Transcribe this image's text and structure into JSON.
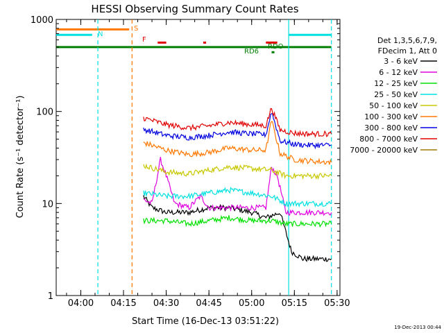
{
  "chart_data": {
    "type": "line",
    "title": "HESSI Observing Summary Count Rates",
    "xlabel": "Start Time (16-Dec-13 03:51:22)",
    "ylabel": "Count Rate (s⁻¹ detector⁻¹)",
    "yscale": "log",
    "ylim": [
      1,
      1000
    ],
    "xlim": [
      "03:51:22",
      "05:31:00"
    ],
    "x_ticks": [
      "04:00",
      "04:15",
      "04:30",
      "04:45",
      "05:00",
      "05:15",
      "05:30"
    ],
    "y_ticks": [
      "1",
      "10",
      "100",
      "1000"
    ],
    "grid": false,
    "legend_position": "right",
    "legend_header": [
      "Det 1,3,5,6,7,9,",
      "FDecim 1, Att 0"
    ],
    "timestamp": "19-Dec-2013 00:44",
    "series": [
      {
        "name": "3 - 6 keV",
        "color": "#000000",
        "x": [
          "04:22",
          "04:25",
          "04:30",
          "04:38",
          "04:45",
          "04:52",
          "05:00",
          "05:05",
          "05:10",
          "05:14",
          "05:18",
          "05:22",
          "05:25",
          "05:28"
        ],
        "values": [
          12,
          9,
          8,
          8,
          9,
          9,
          8,
          7,
          8,
          3,
          2.5,
          2.5,
          2.5,
          2.5
        ]
      },
      {
        "name": "6 - 12 keV",
        "color": "#e000e0",
        "x": [
          "04:22",
          "04:25",
          "04:28",
          "04:30",
          "04:33",
          "04:38",
          "04:42",
          "04:45",
          "04:50",
          "04:55",
          "05:00",
          "05:05",
          "05:07",
          "05:09",
          "05:12",
          "05:15",
          "05:20",
          "05:28"
        ],
        "values": [
          11,
          10,
          30,
          20,
          10,
          9,
          12,
          9,
          9,
          9,
          9,
          9,
          25,
          20,
          8,
          8,
          8,
          8
        ]
      },
      {
        "name": "12 - 25 keV",
        "color": "#00e000",
        "x": [
          "04:22",
          "04:30",
          "04:38",
          "04:45",
          "04:52",
          "05:00",
          "05:07",
          "05:12",
          "05:20",
          "05:28"
        ],
        "values": [
          6.5,
          6.5,
          6,
          6.5,
          7,
          6.5,
          6.5,
          6,
          6,
          6
        ]
      },
      {
        "name": "25 - 50 keV",
        "color": "#00e0e0",
        "x": [
          "04:22",
          "04:30",
          "04:38",
          "04:45",
          "04:52",
          "05:00",
          "05:07",
          "05:12",
          "05:20",
          "05:28"
        ],
        "values": [
          13,
          12,
          12,
          13,
          14,
          13,
          12,
          10,
          10,
          10
        ]
      },
      {
        "name": "50 - 100 keV",
        "color": "#c8c800",
        "x": [
          "04:22",
          "04:30",
          "04:38",
          "04:45",
          "04:52",
          "05:00",
          "05:07",
          "05:12",
          "05:20",
          "05:28"
        ],
        "values": [
          26,
          22,
          21,
          23,
          25,
          24,
          23,
          20,
          20,
          20
        ]
      },
      {
        "name": "100 - 300 keV",
        "color": "#ff7800",
        "x": [
          "04:22",
          "04:30",
          "04:38",
          "04:45",
          "04:52",
          "05:00",
          "05:05",
          "05:07",
          "05:10",
          "05:15",
          "05:20",
          "05:28"
        ],
        "values": [
          46,
          38,
          34,
          36,
          40,
          38,
          38,
          80,
          35,
          30,
          29,
          28
        ]
      },
      {
        "name": "300 - 800 keV",
        "color": "#0000e0",
        "x": [
          "04:22",
          "04:30",
          "04:38",
          "04:45",
          "04:52",
          "05:00",
          "05:05",
          "05:07",
          "05:10",
          "05:15",
          "05:20",
          "05:28"
        ],
        "values": [
          64,
          55,
          52,
          55,
          60,
          57,
          56,
          100,
          48,
          44,
          43,
          43
        ]
      },
      {
        "name": "800 - 7000 keV",
        "color": "#e00000",
        "x": [
          "04:22",
          "04:30",
          "04:38",
          "04:45",
          "04:52",
          "05:00",
          "05:05",
          "05:07",
          "05:10",
          "05:15",
          "05:20",
          "05:28"
        ],
        "values": [
          85,
          72,
          66,
          70,
          76,
          72,
          70,
          110,
          63,
          58,
          57,
          57
        ]
      },
      {
        "name": "7000 - 20000 keV",
        "color": "#a07800",
        "x": [],
        "values": []
      }
    ],
    "annotations": [
      {
        "label": "S",
        "color": "#ff7800"
      },
      {
        "label": "N",
        "color": "#00e0e0"
      },
      {
        "label": "F",
        "color": "#e00000"
      },
      {
        "label": "RD6",
        "color": "#008000"
      },
      {
        "label": "RDO",
        "color": "#008000"
      }
    ],
    "bars": [
      {
        "id": "saa",
        "color": "#ff7800",
        "level": 780,
        "start": "03:51:22",
        "end": "04:17"
      },
      {
        "id": "night",
        "color": "#00e0e0",
        "level": 680,
        "start": "03:51:22",
        "end": "04:04"
      },
      {
        "id": "night2",
        "color": "#00e0e0",
        "level": 680,
        "start": "05:13",
        "end": "05:28"
      },
      {
        "id": "flare1",
        "color": "#e00000",
        "level": 560,
        "start": "04:27",
        "end": "04:30"
      },
      {
        "id": "flare2",
        "color": "#e00000",
        "level": 560,
        "start": "04:43",
        "end": "04:44"
      },
      {
        "id": "flare3",
        "color": "#e00000",
        "level": 560,
        "start": "05:05",
        "end": "05:09"
      },
      {
        "id": "decim",
        "color": "#008000",
        "level": 500,
        "start": "03:51:22",
        "end": "05:28"
      },
      {
        "id": "rd6",
        "color": "#008000",
        "level": 440,
        "start": "05:07",
        "end": "05:08"
      }
    ],
    "vlines": [
      {
        "time": "04:06",
        "color": "#00e0e0"
      },
      {
        "time": "04:18",
        "color": "#ff7800"
      },
      {
        "time": "05:13",
        "color": "#00e0e0",
        "solid": true
      },
      {
        "time": "05:28",
        "color": "#00e0e0"
      }
    ]
  }
}
